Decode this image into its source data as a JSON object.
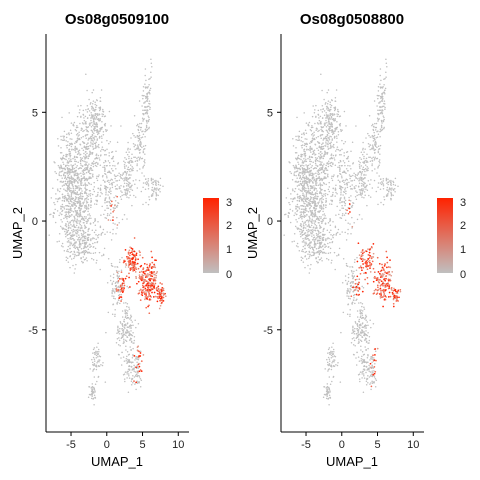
{
  "chart_data": [
    {
      "type": "scatter",
      "title": "Os08g0509100",
      "xlabel": "UMAP_1",
      "ylabel": "UMAP_2",
      "xlim": [
        -8.5,
        11.5
      ],
      "ylim": [
        -9.7,
        8.6
      ],
      "xticks": [
        -5,
        0,
        5,
        10
      ],
      "yticks": [
        -5,
        0,
        5
      ],
      "grid": false,
      "legend_position": "right",
      "color_scale": {
        "low": "#C0C0C0",
        "high": "#FF2200",
        "min": 0,
        "max": 3,
        "ticks": [
          "3",
          "2",
          "1",
          "0"
        ]
      },
      "expression_note": "high expression cluster near UMAP_1 3 to 8, UMAP_2 -1 to -4; scattered along -4 to -7.5 branch"
    },
    {
      "type": "scatter",
      "title": "Os08g0508800",
      "xlabel": "UMAP_1",
      "ylabel": "UMAP_2",
      "xlim": [
        -8.5,
        11.5
      ],
      "ylim": [
        -9.7,
        8.6
      ],
      "xticks": [
        -5,
        0,
        5,
        10
      ],
      "yticks": [
        -5,
        0,
        5
      ],
      "grid": false,
      "legend_position": "right",
      "color_scale": {
        "low": "#C0C0C0",
        "high": "#FF2200",
        "min": 0,
        "max": 3,
        "ticks": [
          "3",
          "2",
          "1",
          "0"
        ]
      },
      "expression_note": "moderate expression cluster near UMAP_1 2 to 8, UMAP_2 -1 to -4"
    }
  ]
}
